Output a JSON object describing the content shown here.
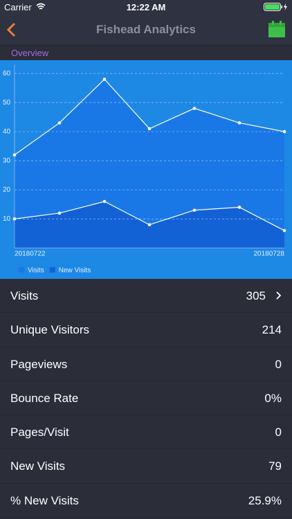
{
  "status_bar": {
    "carrier": "Carrier",
    "time": "12:22 AM"
  },
  "nav": {
    "title": "Fishead Analytics"
  },
  "section": {
    "title": "Overview"
  },
  "chart_data": {
    "type": "line",
    "categories": [
      "20180722",
      null,
      null,
      null,
      null,
      null,
      "20180728"
    ],
    "series": [
      {
        "name": "Visits",
        "color": "#1a78e6",
        "line_color": "#ffffff",
        "values": [
          32,
          43,
          58,
          41,
          48,
          43,
          40
        ]
      },
      {
        "name": "New Visits",
        "color": "#1262d6",
        "line_color": "#ffffff",
        "values": [
          10,
          12,
          16,
          8,
          13,
          14,
          6
        ]
      }
    ],
    "ylim": [
      0,
      63
    ],
    "yticks": [
      10,
      20,
      30,
      40,
      50,
      60
    ],
    "grid": true,
    "legend": "bottom-left"
  },
  "rows": [
    {
      "label": "Visits",
      "value": "305"
    },
    {
      "label": "Unique Visitors",
      "value": "214"
    },
    {
      "label": "Pageviews",
      "value": "0"
    },
    {
      "label": "Bounce Rate",
      "value": "0%"
    },
    {
      "label": "Pages/Visit",
      "value": "0"
    },
    {
      "label": "New Visits",
      "value": "79"
    },
    {
      "label": "% New Visits",
      "value": "25.9%"
    }
  ]
}
